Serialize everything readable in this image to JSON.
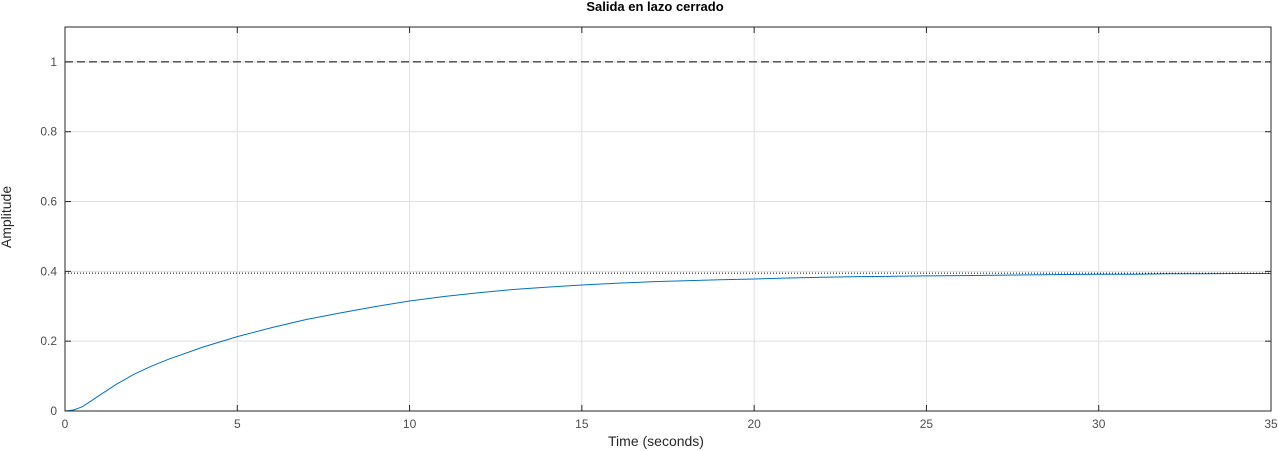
{
  "chart_data": {
    "type": "line",
    "title": "Salida en lazo cerrado",
    "xlabel": "Time (seconds)",
    "ylabel": "Amplitude",
    "xlim": [
      0,
      35
    ],
    "ylim": [
      0,
      1.1
    ],
    "xticks": [
      0,
      5,
      10,
      15,
      20,
      25,
      30,
      35
    ],
    "yticks": [
      0,
      0.2,
      0.4,
      0.6,
      0.8,
      1
    ],
    "ytick_labels": [
      "0",
      "0.2",
      "0.4",
      "0.6",
      "0.8",
      "1"
    ],
    "grid": true,
    "series": [
      {
        "color": "#0072bd",
        "style": "solid",
        "x": [
          0,
          0.25,
          0.5,
          0.75,
          1,
          1.5,
          2,
          2.5,
          3,
          4,
          5,
          6,
          7,
          8,
          9,
          10,
          11,
          12,
          13,
          14,
          15,
          16,
          17,
          18,
          19,
          20,
          21,
          22,
          23,
          24,
          25,
          26,
          27,
          28,
          29,
          30,
          31,
          32,
          33,
          34,
          35
        ],
        "y": [
          0,
          0.003,
          0.012,
          0.028,
          0.045,
          0.077,
          0.105,
          0.128,
          0.148,
          0.183,
          0.213,
          0.239,
          0.262,
          0.281,
          0.299,
          0.315,
          0.328,
          0.339,
          0.348,
          0.355,
          0.361,
          0.366,
          0.37,
          0.373,
          0.376,
          0.378,
          0.381,
          0.383,
          0.385,
          0.386,
          0.387,
          0.388,
          0.389,
          0.39,
          0.391,
          0.392,
          0.392,
          0.393,
          0.393,
          0.394,
          0.394
        ]
      },
      {
        "color": "#000000",
        "style": "dashed",
        "x": [
          0,
          35
        ],
        "y": [
          1,
          1
        ]
      },
      {
        "color": "#000000",
        "style": "dotted",
        "x": [
          0,
          35
        ],
        "y": [
          0.395,
          0.395
        ]
      }
    ]
  }
}
